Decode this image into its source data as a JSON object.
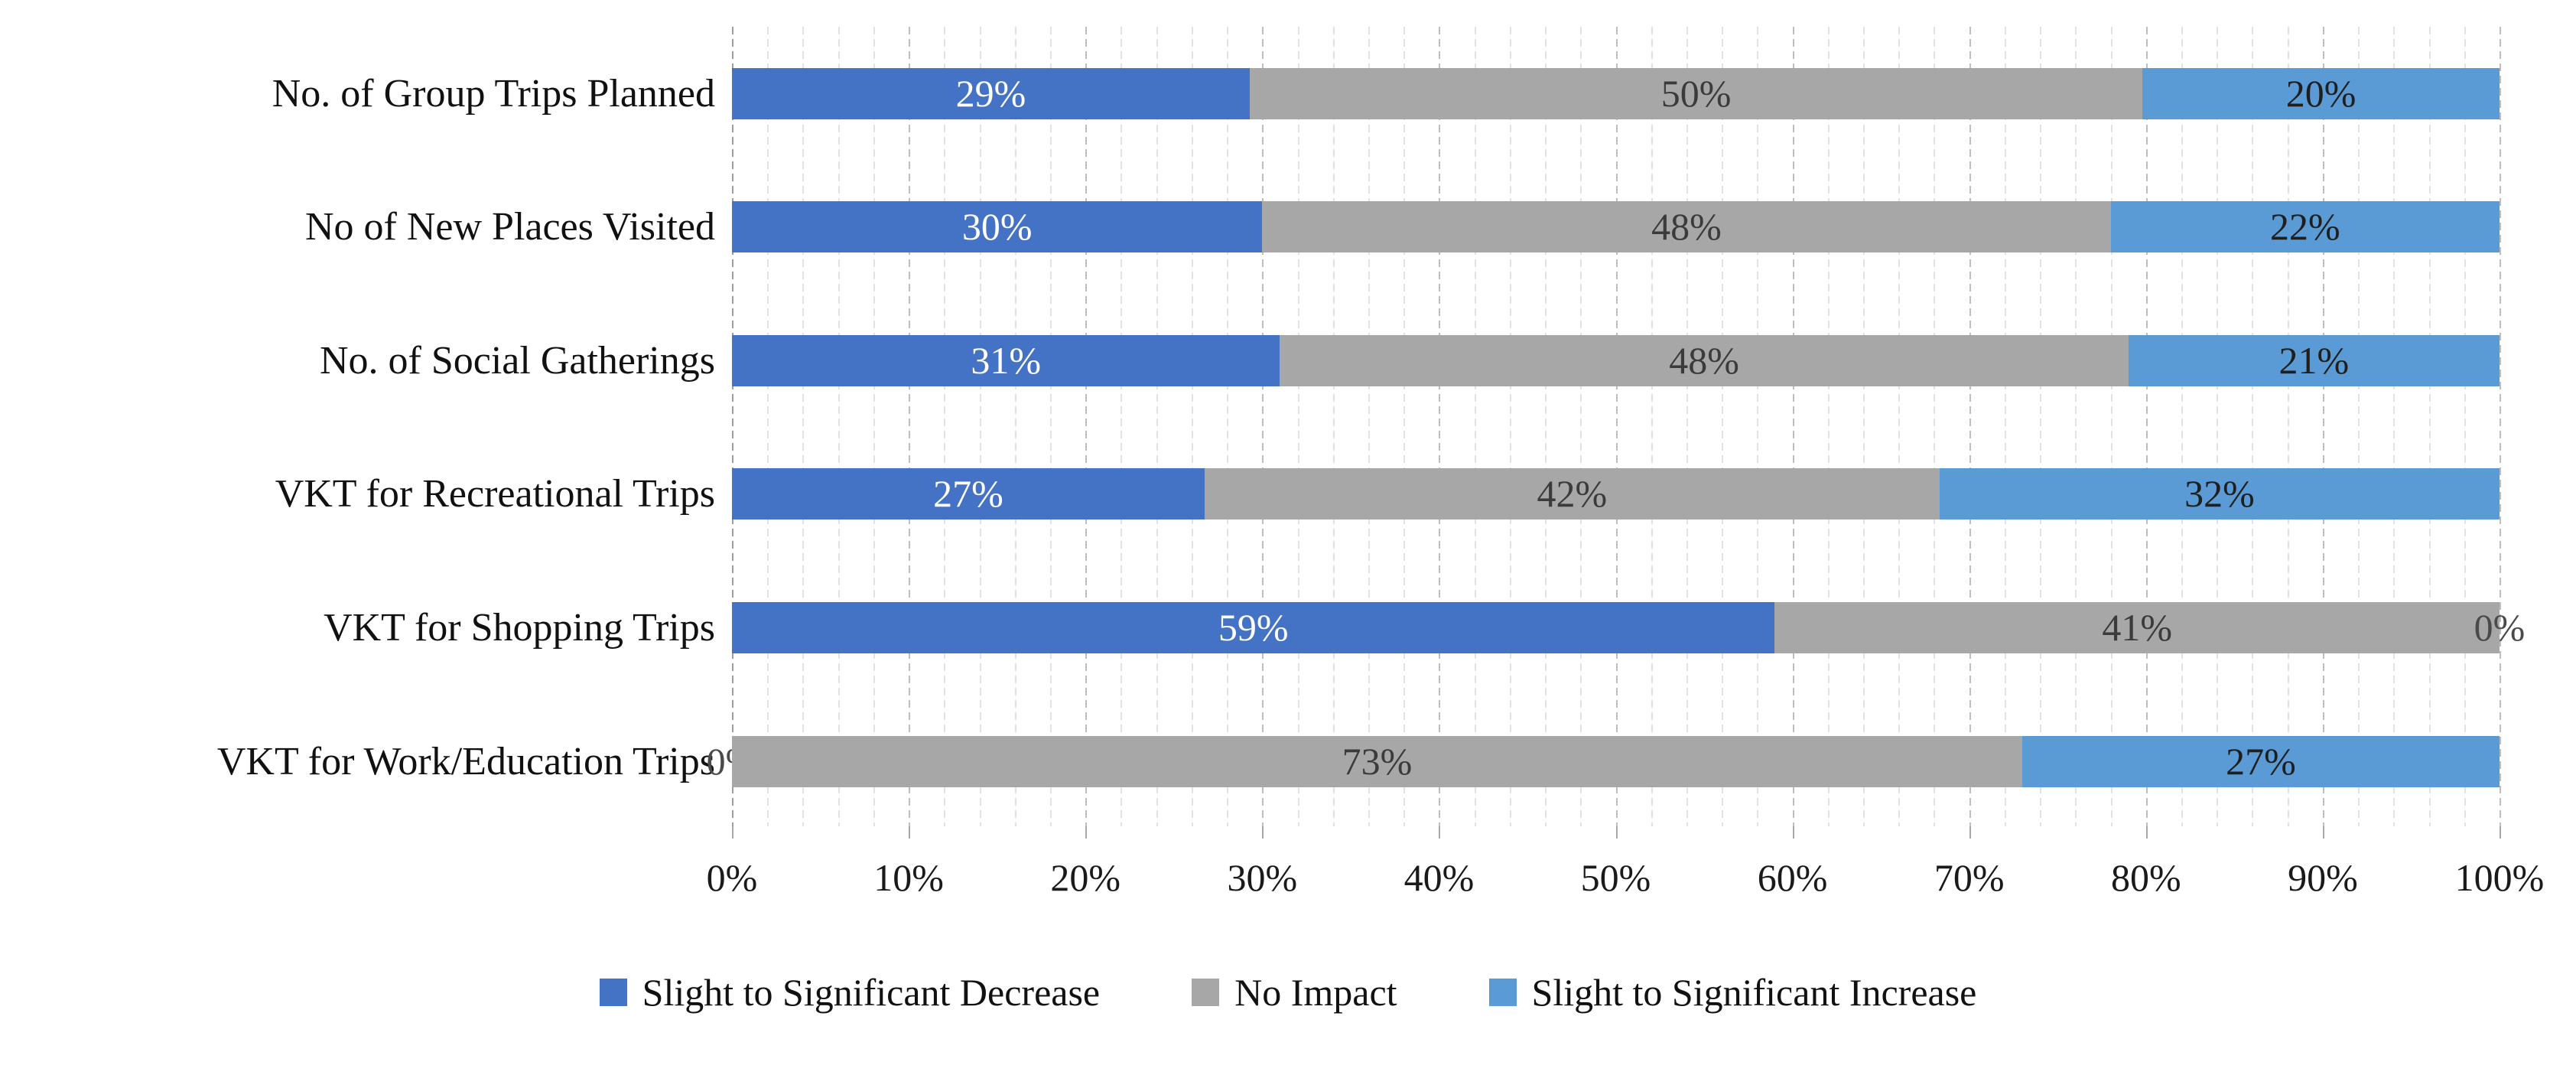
{
  "chart_data": {
    "type": "bar",
    "variant": "horizontal-100%-stacked",
    "title": "",
    "xlabel": "",
    "ylabel": "",
    "categories": [
      "No. of Group Trips Planned",
      "No of New Places Visited",
      "No. of Social Gatherings",
      "VKT for Recreational Trips",
      "VKT for Shopping Trips",
      "VKT for Work/Education Trips"
    ],
    "series": [
      {
        "name": "Slight to Significant Decrease",
        "color": "#4472C4",
        "label_color": "#FFFFFF",
        "values": [
          29,
          30,
          31,
          27,
          59,
          0
        ],
        "display": [
          "29%",
          "30%",
          "31%",
          "27%",
          "59%",
          "0%"
        ]
      },
      {
        "name": "No Impact",
        "color": "#A7A7A7",
        "label_color": "#3B3B3B",
        "values": [
          50,
          48,
          48,
          42,
          41,
          73
        ],
        "display": [
          "50%",
          "48%",
          "48%",
          "42%",
          "41%",
          "73%"
        ]
      },
      {
        "name": "Slight to Significant Increase",
        "color": "#5B9BD5",
        "label_color": "#1F1F1F",
        "values": [
          20,
          22,
          21,
          32,
          0,
          27
        ],
        "display": [
          "20%",
          "22%",
          "21%",
          "32%",
          "0%",
          "27%"
        ]
      }
    ],
    "zero_label_color": "#4A4A4A",
    "x_axis": {
      "range": [
        0,
        100
      ],
      "tick_labels": [
        "0%",
        "10%",
        "20%",
        "30%",
        "40%",
        "50%",
        "60%",
        "70%",
        "80%",
        "90%",
        "100%"
      ],
      "major_interval": 10,
      "minor_interval": 2,
      "grid": true
    },
    "legend": {
      "position": "bottom",
      "items": [
        "Slight to Significant Decrease",
        "No Impact",
        "Slight to Significant Increase"
      ]
    }
  }
}
